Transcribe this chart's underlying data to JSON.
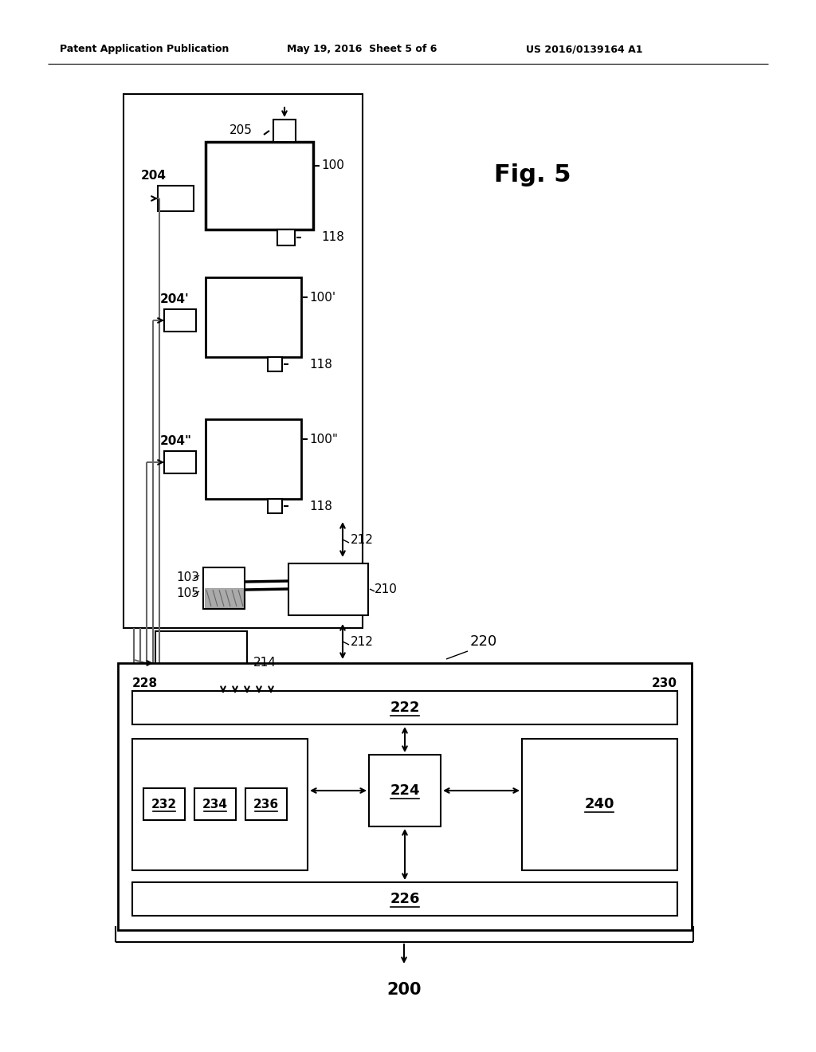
{
  "bg_color": "#ffffff",
  "header_left": "Patent Application Publication",
  "header_mid": "May 19, 2016  Sheet 5 of 6",
  "header_right": "US 2016/0139164 A1",
  "fig_label": "Fig. 5",
  "label_200": "200",
  "label_220": "220",
  "label_228": "228",
  "label_230": "230",
  "label_222": "222",
  "label_224": "224",
  "label_226": "226",
  "label_232": "232",
  "label_234": "234",
  "label_236": "236",
  "label_240": "240",
  "label_205": "205",
  "label_204": "204",
  "label_100": "100",
  "label_118": "118",
  "label_204p": "204'",
  "label_100p": "100'",
  "label_204pp": "204\"",
  "label_100pp": "100\"",
  "label_212": "212",
  "label_103": "103",
  "label_105": "105",
  "label_210": "210",
  "label_214": "214"
}
